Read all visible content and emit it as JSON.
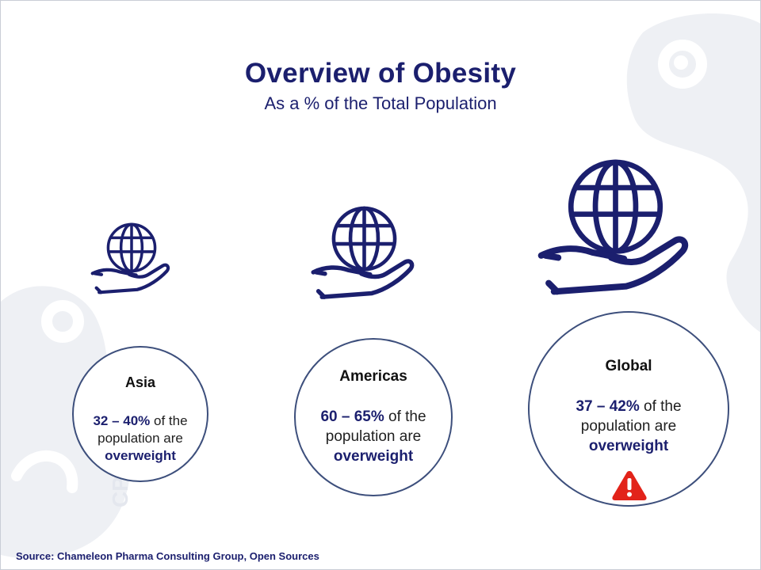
{
  "header": {
    "title": "Overview of Obesity",
    "subtitle": "As a % of the Total Population"
  },
  "watermark": {
    "text": "CPC"
  },
  "regions": [
    {
      "name": "Asia",
      "range": "32 – 40%",
      "text_before": "of the",
      "text_mid": "population are",
      "keyword": "overweight"
    },
    {
      "name": "Americas",
      "range": "60 – 65%",
      "text_before": "of the",
      "text_mid": "population are",
      "keyword": "overweight"
    },
    {
      "name": "Global",
      "range": "37 – 42%",
      "text_before": "of the",
      "text_mid": "population are",
      "keyword": "overweight",
      "alert_icon": "warning-triangle-icon"
    }
  ],
  "icons": {
    "region_icon": "globe-in-hand-icon"
  },
  "colors": {
    "primary": "#1b1f6e",
    "circle_border": "#3d4f7c",
    "warning": "#e2231a"
  },
  "footer": {
    "source": "Source: Chameleon Pharma Consulting Group, Open Sources"
  }
}
